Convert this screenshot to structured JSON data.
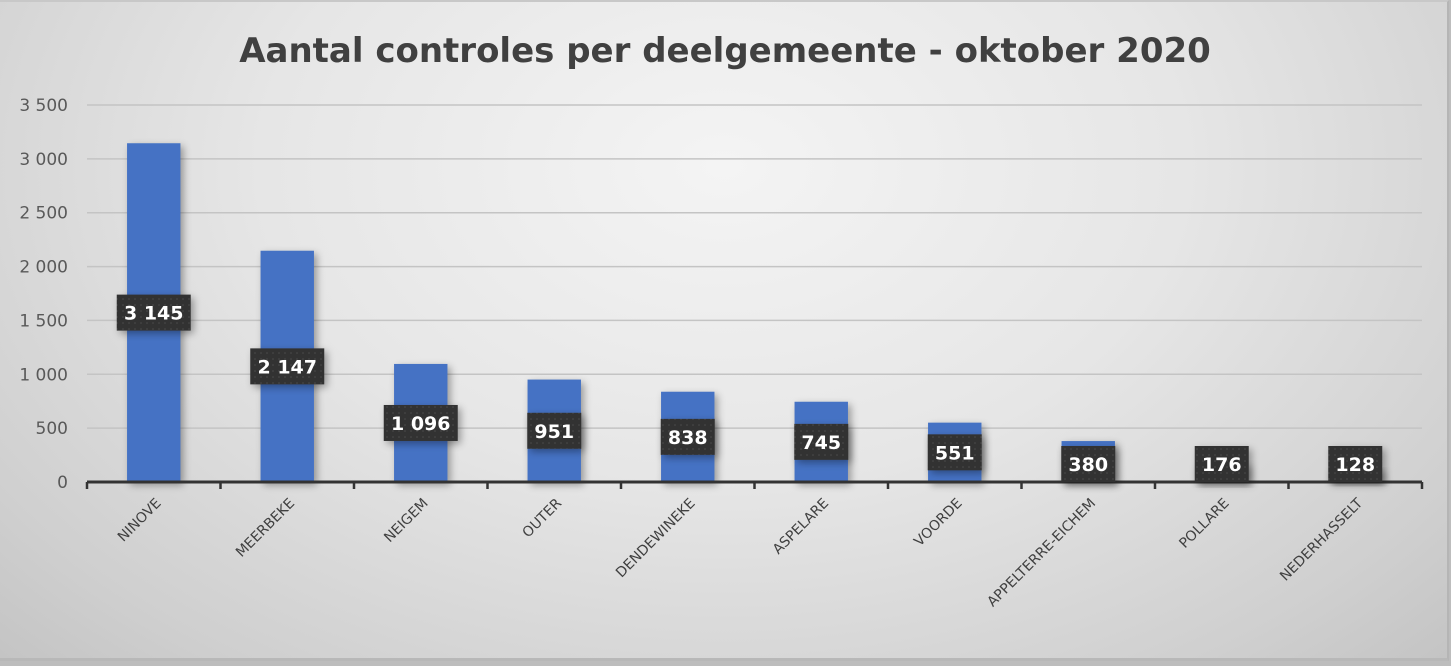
{
  "chart_data": {
    "type": "bar",
    "title": "Aantal controles per deelgemeente - oktober 2020",
    "xlabel": "",
    "ylabel": "",
    "categories": [
      "NINOVE",
      "MEERBEKE",
      "NEIGEM",
      "OUTER",
      "DENDEWINEKE",
      "ASPELARE",
      "VOORDE",
      "APPELTERRE-EICHEM",
      "POLLARE",
      "NEDERHASSELT"
    ],
    "values": [
      3145,
      2147,
      1096,
      951,
      838,
      745,
      551,
      380,
      176,
      128
    ],
    "data_labels": [
      "3 145",
      "2 147",
      "1 096",
      "951",
      "838",
      "745",
      "551",
      "380",
      "176",
      "128"
    ],
    "ylim": [
      0,
      3500
    ],
    "yticks": [
      0,
      500,
      1000,
      1500,
      2000,
      2500,
      3000,
      3500
    ],
    "ytick_labels": [
      "0",
      "500",
      "1 000",
      "1 500",
      "2 000",
      "2 500",
      "3 000",
      "3 500"
    ],
    "grid": true,
    "legend": "none",
    "colors": {
      "bar": "#4472C4",
      "data_label_bg": "#333333",
      "data_label_text": "#FFFFFF",
      "title": "#404040",
      "gridline": "#C4C4C4",
      "axis": "#333333"
    }
  }
}
